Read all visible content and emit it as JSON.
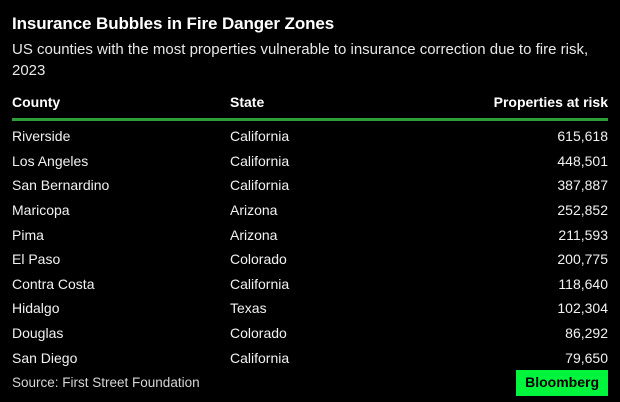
{
  "chart_data": {
    "type": "table",
    "title": "Insurance Bubbles in Fire Danger Zones",
    "subtitle": "US counties with the most properties vulnerable to insurance correction due to fire risk, 2023",
    "columns": [
      "County",
      "State",
      "Properties at risk"
    ],
    "rows": [
      {
        "county": "Riverside",
        "state": "California",
        "properties_at_risk": "615,618"
      },
      {
        "county": "Los Angeles",
        "state": "California",
        "properties_at_risk": "448,501"
      },
      {
        "county": "San Bernardino",
        "state": "California",
        "properties_at_risk": "387,887"
      },
      {
        "county": "Maricopa",
        "state": "Arizona",
        "properties_at_risk": "252,852"
      },
      {
        "county": "Pima",
        "state": "Arizona",
        "properties_at_risk": "211,593"
      },
      {
        "county": "El Paso",
        "state": "Colorado",
        "properties_at_risk": "200,775"
      },
      {
        "county": "Contra Costa",
        "state": "California",
        "properties_at_risk": "118,640"
      },
      {
        "county": "Hidalgo",
        "state": "Texas",
        "properties_at_risk": "102,304"
      },
      {
        "county": "Douglas",
        "state": "Colorado",
        "properties_at_risk": "86,292"
      },
      {
        "county": "San Diego",
        "state": "California",
        "properties_at_risk": "79,650"
      }
    ],
    "source": "Source: First Street Foundation",
    "brand": "Bloomberg",
    "legend_position": "none",
    "grid": false
  },
  "colors": {
    "background": "#000000",
    "title_text": "#ffffff",
    "body_text": "#f2f2f2",
    "header_rule_green": "#2e9e38",
    "brand_green": "#00f53d",
    "brand_text": "#000000"
  }
}
